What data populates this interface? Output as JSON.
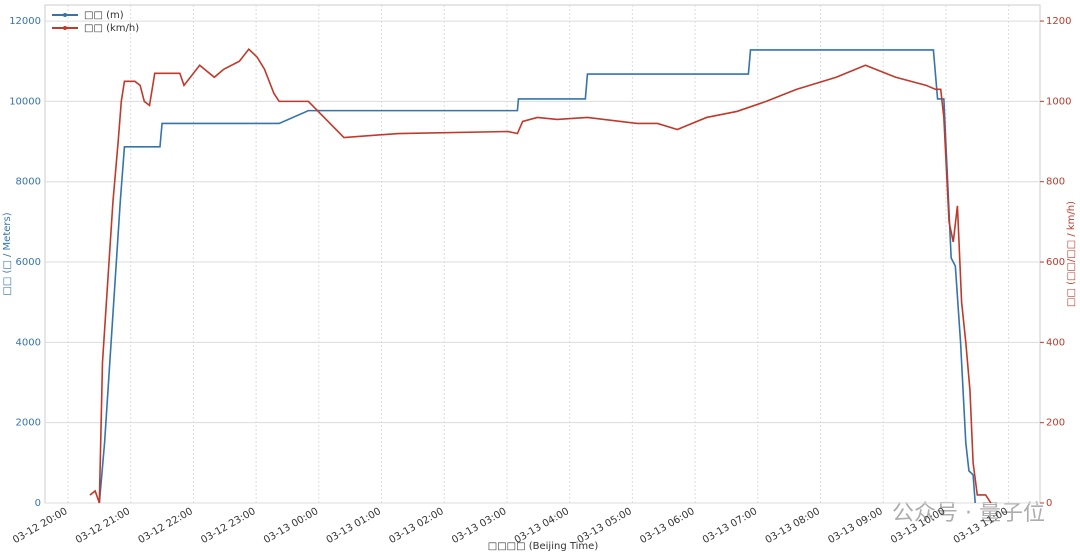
{
  "chart_data": {
    "type": "line",
    "xlabel": "□□□□ (Beijing Time)",
    "ylabel": "□□ (□ / Meters)",
    "y2label": "□□ (□□/□□ / km/h)",
    "watermark": "公众号 · 量子位",
    "xlim": [
      "03-12 19:38",
      "03-13 11:30"
    ],
    "xticks": [
      "03-12 20:00",
      "03-12 21:00",
      "03-12 22:00",
      "03-12 23:00",
      "03-13 00:00",
      "03-13 01:00",
      "03-13 02:00",
      "03-13 03:00",
      "03-13 04:00",
      "03-13 05:00",
      "03-13 06:00",
      "03-13 07:00",
      "03-13 08:00",
      "03-13 09:00",
      "03-13 10:00",
      "03-13 11:00"
    ],
    "ylim": [
      0,
      12400
    ],
    "yticks": [
      0,
      2000,
      4000,
      6000,
      8000,
      10000,
      12000
    ],
    "y2lim": [
      0,
      1240
    ],
    "y2ticks": [
      0,
      200,
      400,
      600,
      800,
      1000,
      1200
    ],
    "grid": true,
    "legend": "upper left",
    "series": [
      {
        "name": "□□ (m)",
        "color": "#3574ad",
        "x": [
          "03-12 20:30",
          "03-12 20:35",
          "03-12 20:40",
          "03-12 20:45",
          "03-12 20:50",
          "03-12 20:54",
          "03-12 21:28",
          "03-12 21:30",
          "03-12 23:22",
          "03-12 23:50",
          "03-13 03:10",
          "03-13 03:11",
          "03-13 04:15",
          "03-13 04:17",
          "03-13 06:51",
          "03-13 06:53",
          "03-13 09:48",
          "03-13 09:52",
          "03-13 09:58",
          "03-13 10:05",
          "03-13 10:09",
          "03-13 10:14",
          "03-13 10:19",
          "03-13 10:22",
          "03-13 10:26",
          "03-13 10:28"
        ],
        "values": [
          0,
          1500,
          3500,
          5500,
          7500,
          8870,
          8870,
          9450,
          9450,
          9770,
          9770,
          10060,
          10060,
          10680,
          10680,
          11280,
          11280,
          10060,
          10060,
          6100,
          5900,
          4000,
          1500,
          800,
          700,
          0
        ]
      },
      {
        "name": "□□ (km/h)",
        "color": "#c0392b",
        "axis": "y2",
        "x": [
          "03-12 20:21",
          "03-12 20:26",
          "03-12 20:30",
          "03-12 20:33",
          "03-12 20:38",
          "03-12 20:43",
          "03-12 20:48",
          "03-12 20:51",
          "03-12 20:54",
          "03-12 21:04",
          "03-12 21:09",
          "03-12 21:13",
          "03-12 21:18",
          "03-12 21:23",
          "03-12 21:47",
          "03-12 21:51",
          "03-12 22:06",
          "03-12 22:20",
          "03-12 22:29",
          "03-12 22:44",
          "03-12 22:53",
          "03-12 23:01",
          "03-12 23:08",
          "03-12 23:17",
          "03-12 23:22",
          "03-12 23:50",
          "03-13 00:24",
          "03-13 01:16",
          "03-13 03:01",
          "03-13 03:10",
          "03-13 03:15",
          "03-13 03:29",
          "03-13 03:48",
          "03-13 04:17",
          "03-13 05:05",
          "03-13 05:24",
          "03-13 05:43",
          "03-13 06:11",
          "03-13 06:40",
          "03-13 07:08",
          "03-13 07:37",
          "03-13 08:15",
          "03-13 08:43",
          "03-13 09:12",
          "03-13 09:41",
          "03-13 09:50",
          "03-13 09:55",
          "03-13 09:58",
          "03-13 10:03",
          "03-13 10:07",
          "03-13 10:11",
          "03-13 10:15",
          "03-13 10:19",
          "03-13 10:23",
          "03-13 10:26",
          "03-13 10:30",
          "03-13 10:38",
          "03-13 10:43"
        ],
        "values": [
          20,
          30,
          0,
          350,
          550,
          750,
          900,
          1000,
          1050,
          1050,
          1040,
          1000,
          990,
          1070,
          1070,
          1040,
          1090,
          1060,
          1080,
          1100,
          1130,
          1110,
          1080,
          1020,
          1000,
          1000,
          910,
          920,
          925,
          920,
          950,
          960,
          955,
          960,
          945,
          945,
          930,
          960,
          975,
          1000,
          1030,
          1060,
          1090,
          1060,
          1040,
          1030,
          1030,
          960,
          700,
          650,
          740,
          500,
          400,
          280,
          100,
          20,
          20,
          0
        ]
      }
    ]
  }
}
